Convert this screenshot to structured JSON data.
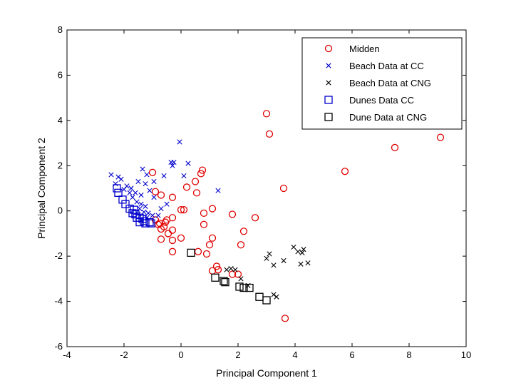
{
  "chart_data": {
    "type": "scatter",
    "title": "",
    "xlabel": "Principal Component 1",
    "ylabel": "Principal Component 2",
    "xlim": [
      -4,
      10
    ],
    "ylim": [
      -6,
      8
    ],
    "xticks": [
      "-4",
      "-2",
      "0",
      "2",
      "4",
      "6",
      "8",
      "10"
    ],
    "yticks": [
      "-6",
      "-4",
      "-2",
      "0",
      "2",
      "4",
      "6",
      "8"
    ],
    "grid": false,
    "legend_position": "top-right",
    "series": [
      {
        "name": "Midden",
        "marker": "circle",
        "color": "#e00000",
        "points": [
          [
            3.0,
            4.3
          ],
          [
            3.1,
            3.4
          ],
          [
            9.1,
            3.25
          ],
          [
            7.5,
            2.8
          ],
          [
            5.75,
            1.75
          ],
          [
            3.6,
            1.0
          ],
          [
            0.75,
            1.8
          ],
          [
            0.7,
            1.65
          ],
          [
            -1.0,
            1.7
          ],
          [
            0.5,
            1.3
          ],
          [
            0.2,
            1.05
          ],
          [
            -0.3,
            0.6
          ],
          [
            -0.9,
            0.85
          ],
          [
            -0.7,
            0.7
          ],
          [
            0.55,
            0.8
          ],
          [
            1.1,
            0.1
          ],
          [
            0.8,
            -0.1
          ],
          [
            1.8,
            -0.15
          ],
          [
            0.0,
            0.05
          ],
          [
            0.1,
            0.05
          ],
          [
            -0.3,
            -0.3
          ],
          [
            0.8,
            -0.6
          ],
          [
            2.6,
            -0.3
          ],
          [
            2.2,
            -0.9
          ],
          [
            1.1,
            -1.2
          ],
          [
            1.0,
            -1.5
          ],
          [
            2.1,
            -1.5
          ],
          [
            -0.55,
            -0.5
          ],
          [
            -0.8,
            -0.6
          ],
          [
            -0.6,
            -0.7
          ],
          [
            -0.7,
            -0.8
          ],
          [
            -0.75,
            -0.55
          ],
          [
            -0.45,
            -1.0
          ],
          [
            -0.3,
            -0.85
          ],
          [
            -0.3,
            -1.3
          ],
          [
            0.0,
            -1.2
          ],
          [
            -0.7,
            -1.25
          ],
          [
            -0.3,
            -1.8
          ],
          [
            0.6,
            -1.8
          ],
          [
            0.9,
            -1.9
          ],
          [
            1.1,
            -2.65
          ],
          [
            1.25,
            -2.45
          ],
          [
            1.3,
            -2.6
          ],
          [
            1.8,
            -2.8
          ],
          [
            2.0,
            -2.8
          ],
          [
            3.65,
            -4.75
          ],
          [
            -0.9,
            -0.4
          ],
          [
            -0.5,
            -0.4
          ]
        ]
      },
      {
        "name": "Beach Data at CC",
        "marker": "x",
        "color": "#0000cc",
        "points": [
          [
            -0.05,
            3.05
          ],
          [
            -0.35,
            2.15
          ],
          [
            -0.25,
            2.15
          ],
          [
            -0.3,
            2.0
          ],
          [
            0.25,
            2.1
          ],
          [
            0.1,
            1.55
          ],
          [
            -1.35,
            1.85
          ],
          [
            -1.2,
            1.6
          ],
          [
            -0.6,
            1.55
          ],
          [
            -2.45,
            1.6
          ],
          [
            -2.2,
            1.5
          ],
          [
            -2.1,
            1.4
          ],
          [
            -1.5,
            1.3
          ],
          [
            -1.25,
            1.2
          ],
          [
            -0.95,
            1.3
          ],
          [
            -1.9,
            1.1
          ],
          [
            -1.75,
            1.0
          ],
          [
            -2.0,
            0.95
          ],
          [
            -1.6,
            0.8
          ],
          [
            -1.4,
            0.7
          ],
          [
            -1.1,
            0.9
          ],
          [
            -0.95,
            0.6
          ],
          [
            -1.7,
            0.6
          ],
          [
            -1.55,
            0.4
          ],
          [
            -1.4,
            0.3
          ],
          [
            -1.25,
            0.2
          ],
          [
            -1.45,
            0.1
          ],
          [
            -1.3,
            -0.05
          ],
          [
            -1.15,
            -0.1
          ],
          [
            -1.5,
            -0.15
          ],
          [
            -1.2,
            -0.3
          ],
          [
            -1.4,
            -0.4
          ],
          [
            -1.0,
            -0.2
          ],
          [
            -0.8,
            -0.2
          ],
          [
            1.3,
            0.9
          ],
          [
            -0.7,
            0.1
          ],
          [
            -0.5,
            0.3
          ],
          [
            -1.8,
            0.8
          ],
          [
            -2.3,
            1.2
          ]
        ]
      },
      {
        "name": "Beach Data at CNG",
        "marker": "x",
        "color": "#000000",
        "points": [
          [
            3.0,
            -2.1
          ],
          [
            3.1,
            -1.9
          ],
          [
            3.25,
            -2.4
          ],
          [
            3.6,
            -2.2
          ],
          [
            3.95,
            -1.6
          ],
          [
            4.1,
            -1.8
          ],
          [
            4.25,
            -1.85
          ],
          [
            4.3,
            -1.7
          ],
          [
            4.2,
            -2.35
          ],
          [
            4.45,
            -2.3
          ],
          [
            1.6,
            -2.6
          ],
          [
            1.75,
            -2.55
          ],
          [
            1.9,
            -2.6
          ],
          [
            2.1,
            -3.0
          ],
          [
            2.35,
            -3.3
          ],
          [
            3.35,
            -3.8
          ],
          [
            3.25,
            -3.7
          ]
        ]
      },
      {
        "name": "Dunes Data CC",
        "marker": "square",
        "color": "#0000cc",
        "points": [
          [
            -2.25,
            1.0
          ],
          [
            -2.2,
            0.8
          ],
          [
            -2.05,
            0.5
          ],
          [
            -1.95,
            0.3
          ],
          [
            -1.8,
            0.1
          ],
          [
            -1.65,
            0.05
          ],
          [
            -1.7,
            -0.1
          ],
          [
            -1.6,
            -0.15
          ],
          [
            -1.45,
            -0.3
          ],
          [
            -1.35,
            -0.35
          ],
          [
            -1.3,
            -0.45
          ],
          [
            -1.1,
            -0.5
          ],
          [
            -1.45,
            -0.5
          ],
          [
            -1.25,
            -0.55
          ],
          [
            -1.05,
            -0.55
          ],
          [
            -1.55,
            -0.3
          ]
        ]
      },
      {
        "name": "Dune Data at CNG",
        "marker": "square",
        "color": "#000000",
        "points": [
          [
            0.35,
            -1.85
          ],
          [
            1.2,
            -2.95
          ],
          [
            1.5,
            -3.1
          ],
          [
            1.55,
            -3.15
          ],
          [
            2.05,
            -3.35
          ],
          [
            2.2,
            -3.4
          ],
          [
            2.4,
            -3.4
          ],
          [
            2.75,
            -3.8
          ],
          [
            3.0,
            -3.95
          ]
        ]
      }
    ]
  }
}
